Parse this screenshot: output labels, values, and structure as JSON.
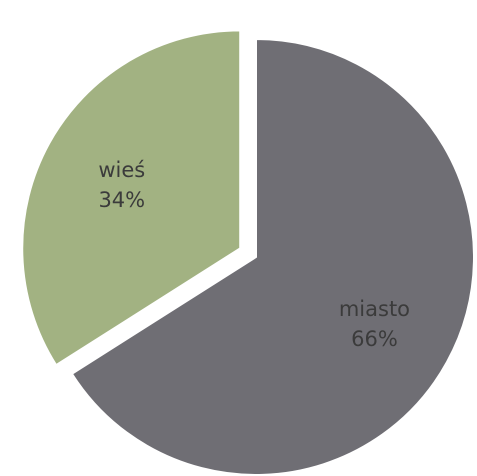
{
  "chart_data": {
    "type": "pie",
    "title": "",
    "slices": [
      {
        "label": "miasto",
        "value": 66,
        "value_label": "66%",
        "color": "#6f6e74"
      },
      {
        "label": "wieś",
        "value": 34,
        "value_label": "34%",
        "color": "#a2b282"
      }
    ],
    "start_angle_deg": 0,
    "direction": "clockwise",
    "exploded_slice": "wieś",
    "slice_border_color": "#ffffff",
    "legend": "none"
  }
}
